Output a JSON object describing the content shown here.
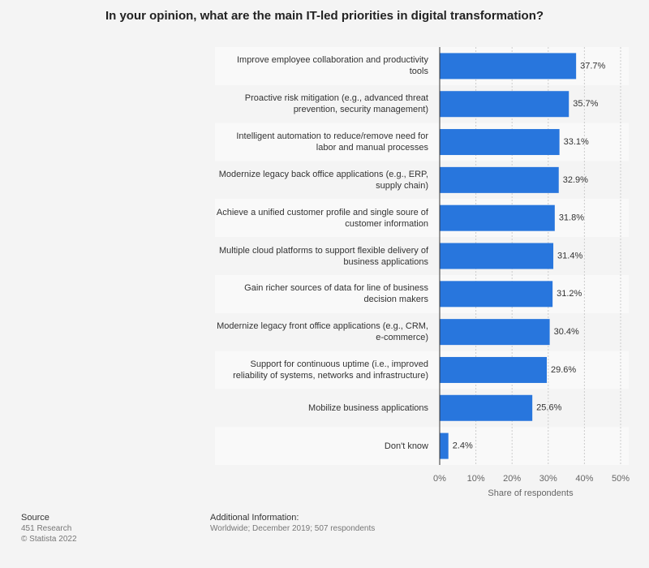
{
  "chart_data": {
    "type": "bar",
    "orientation": "horizontal",
    "title": "In your opinion, what are the main IT-led priorities in digital transformation?",
    "categories": [
      "Improve employee collaboration and productivity tools",
      "Proactive risk mitigation (e.g., advanced threat prevention, security management)",
      "Intelligent automation to reduce/remove need for labor and manual processes",
      "Modernize legacy back office applications (e.g., ERP, supply chain)",
      "Achieve a unified customer profile and single soure of customer information",
      "Multiple cloud platforms to support flexible delivery of business applications",
      "Gain richer sources of data for line of business decision makers",
      "Modernize legacy front office applications (e.g., CRM, e-commerce)",
      "Support for continuous uptime (i.e., improved reliability of systems, networks and infrastructure)",
      "Mobilize business applications",
      "Don't know"
    ],
    "values": [
      37.7,
      35.7,
      33.1,
      32.9,
      31.8,
      31.4,
      31.2,
      30.4,
      29.6,
      25.6,
      2.4
    ],
    "value_labels": [
      "37.7%",
      "35.7%",
      "33.1%",
      "32.9%",
      "31.8%",
      "31.4%",
      "31.2%",
      "30.4%",
      "29.6%",
      "25.6%",
      "2.4%"
    ],
    "color": "#2876dd",
    "xlim": [
      0,
      50
    ],
    "xticks": [
      {
        "value": 0,
        "label": "0%"
      },
      {
        "value": 10,
        "label": "10%"
      },
      {
        "value": 20,
        "label": "20%"
      },
      {
        "value": 30,
        "label": "30%"
      },
      {
        "value": 40,
        "label": "40%"
      },
      {
        "value": 50,
        "label": "50%"
      }
    ],
    "xlabel": "Share of respondents",
    "grid": true
  },
  "footer": {
    "source_title": "Source",
    "source": "451 Research",
    "copyright": "© Statista 2022",
    "info_title": "Additional Information:",
    "info": "Worldwide; December 2019; 507 respondents"
  }
}
